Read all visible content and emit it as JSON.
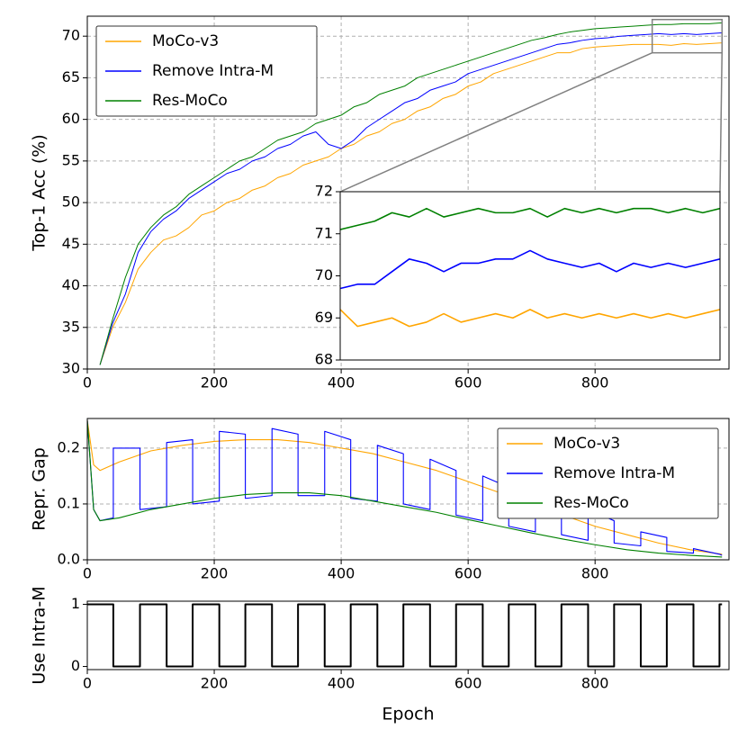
{
  "chart_data": [
    {
      "type": "line",
      "ylabel": "Top-1 Acc (%)",
      "xlim": [
        0,
        1011
      ],
      "ylim": [
        30,
        72.4
      ],
      "xticks": [
        0,
        200,
        400,
        600,
        800
      ],
      "yticks": [
        30,
        35,
        40,
        45,
        50,
        55,
        60,
        65,
        70
      ],
      "grid": true,
      "legend": "upper left",
      "series": [
        {
          "name": "MoCo-v3",
          "color": "#ffa500",
          "x": [
            20,
            40,
            60,
            80,
            100,
            120,
            140,
            160,
            180,
            200,
            220,
            240,
            260,
            280,
            300,
            320,
            340,
            360,
            380,
            400,
            420,
            440,
            460,
            480,
            500,
            520,
            540,
            560,
            580,
            600,
            620,
            640,
            660,
            680,
            700,
            720,
            740,
            760,
            780,
            800,
            820,
            840,
            860,
            880,
            900,
            920,
            940,
            960,
            980,
            1000
          ],
          "values": [
            30.5,
            35,
            38,
            42,
            44,
            45.5,
            46,
            47,
            48.5,
            49,
            50,
            50.5,
            51.5,
            52,
            53,
            53.5,
            54.5,
            55,
            55.5,
            56.5,
            57,
            58,
            58.5,
            59.5,
            60,
            61,
            61.5,
            62.5,
            63,
            64,
            64.5,
            65.5,
            66,
            66.5,
            67,
            67.5,
            68,
            68,
            68.5,
            68.7,
            68.8,
            68.9,
            69,
            69,
            69,
            68.9,
            69.1,
            69,
            69.1,
            69.2
          ]
        },
        {
          "name": "Remove Intra-M",
          "color": "#0000ff",
          "x": [
            20,
            40,
            60,
            80,
            100,
            120,
            140,
            160,
            180,
            200,
            220,
            240,
            260,
            280,
            300,
            320,
            340,
            360,
            380,
            400,
            420,
            440,
            460,
            480,
            500,
            520,
            540,
            560,
            580,
            600,
            620,
            640,
            660,
            680,
            700,
            720,
            740,
            760,
            780,
            800,
            820,
            840,
            860,
            880,
            900,
            920,
            940,
            960,
            980,
            1000
          ],
          "values": [
            30.5,
            35.5,
            39,
            44,
            46.5,
            48,
            49,
            50.5,
            51.5,
            52.5,
            53.5,
            54,
            55,
            55.5,
            56.5,
            57,
            58,
            58.5,
            57,
            56.5,
            57.5,
            59,
            60,
            61,
            62,
            62.5,
            63.5,
            64,
            64.5,
            65.5,
            66,
            66.5,
            67,
            67.5,
            68,
            68.5,
            69,
            69.2,
            69.5,
            69.7,
            69.8,
            70,
            70.1,
            70.2,
            70.3,
            70.2,
            70.3,
            70.2,
            70.3,
            70.4
          ]
        },
        {
          "name": "Res-MoCo",
          "color": "#008000",
          "x": [
            20,
            40,
            60,
            80,
            100,
            120,
            140,
            160,
            180,
            200,
            220,
            240,
            260,
            280,
            300,
            320,
            340,
            360,
            380,
            400,
            420,
            440,
            460,
            480,
            500,
            520,
            540,
            560,
            580,
            600,
            620,
            640,
            660,
            680,
            700,
            720,
            740,
            760,
            780,
            800,
            820,
            840,
            860,
            880,
            900,
            920,
            940,
            960,
            980,
            1000
          ],
          "values": [
            30.5,
            36,
            41,
            45,
            47,
            48.5,
            49.5,
            51,
            52,
            53,
            54,
            55,
            55.5,
            56.5,
            57.5,
            58,
            58.5,
            59.5,
            60,
            60.5,
            61.5,
            62,
            63,
            63.5,
            64,
            65,
            65.5,
            66,
            66.5,
            67,
            67.5,
            68,
            68.5,
            69,
            69.5,
            69.8,
            70.2,
            70.5,
            70.7,
            70.9,
            71,
            71.1,
            71.2,
            71.3,
            71.4,
            71.4,
            71.5,
            71.5,
            71.5,
            71.6
          ]
        }
      ]
    },
    {
      "type": "line",
      "xlim": [
        890,
        1000
      ],
      "ylim": [
        68,
        72
      ],
      "yticks": [
        68,
        69,
        70,
        71,
        72
      ],
      "series": [
        {
          "color": "#ffa500",
          "x": [
            890,
            895,
            900,
            905,
            910,
            915,
            920,
            925,
            930,
            935,
            940,
            945,
            950,
            955,
            960,
            965,
            970,
            975,
            980,
            985,
            990,
            995,
            1000
          ],
          "values": [
            69.2,
            68.8,
            68.9,
            69.0,
            68.8,
            68.9,
            69.1,
            68.9,
            69.0,
            69.1,
            69.0,
            69.2,
            69.0,
            69.1,
            69.0,
            69.1,
            69.0,
            69.1,
            69.0,
            69.1,
            69.0,
            69.1,
            69.2
          ]
        },
        {
          "color": "#0000ff",
          "x": [
            890,
            895,
            900,
            905,
            910,
            915,
            920,
            925,
            930,
            935,
            940,
            945,
            950,
            955,
            960,
            965,
            970,
            975,
            980,
            985,
            990,
            995,
            1000
          ],
          "values": [
            69.7,
            69.8,
            69.8,
            70.1,
            70.4,
            70.3,
            70.1,
            70.3,
            70.3,
            70.4,
            70.4,
            70.6,
            70.4,
            70.3,
            70.2,
            70.3,
            70.1,
            70.3,
            70.2,
            70.3,
            70.2,
            70.3,
            70.4
          ]
        },
        {
          "color": "#008000",
          "x": [
            890,
            895,
            900,
            905,
            910,
            915,
            920,
            925,
            930,
            935,
            940,
            945,
            950,
            955,
            960,
            965,
            970,
            975,
            980,
            985,
            990,
            995,
            1000
          ],
          "values": [
            71.1,
            71.2,
            71.3,
            71.5,
            71.4,
            71.6,
            71.4,
            71.5,
            71.6,
            71.5,
            71.5,
            71.6,
            71.4,
            71.6,
            71.5,
            71.6,
            71.5,
            71.6,
            71.6,
            71.5,
            71.6,
            71.5,
            71.6
          ]
        }
      ]
    },
    {
      "type": "line",
      "ylabel": "Repr. Gap",
      "xlim": [
        0,
        1011
      ],
      "ylim": [
        0,
        0.253
      ],
      "xticks": [
        0,
        200,
        400,
        600,
        800
      ],
      "yticks": [
        {
          "value": 0,
          "label": "0.0"
        },
        0.1,
        0.2
      ],
      "grid": true,
      "legend": "upper right",
      "series": [
        {
          "name": "MoCo-v3",
          "color": "#ffa500",
          "x": [
            0,
            10,
            20,
            50,
            100,
            150,
            200,
            250,
            300,
            350,
            400,
            450,
            500,
            550,
            600,
            650,
            700,
            750,
            800,
            850,
            900,
            950,
            1000
          ],
          "values": [
            0.25,
            0.17,
            0.16,
            0.175,
            0.195,
            0.205,
            0.212,
            0.215,
            0.215,
            0.21,
            0.2,
            0.19,
            0.175,
            0.16,
            0.14,
            0.12,
            0.1,
            0.08,
            0.06,
            0.045,
            0.03,
            0.018,
            0.01
          ]
        },
        {
          "name": "Remove Intra-M",
          "color": "#0000ff",
          "x": [
            0,
            10,
            20,
            41,
            41,
            83,
            83,
            125,
            125,
            166,
            166,
            208,
            208,
            249,
            249,
            291,
            291,
            332,
            332,
            374,
            374,
            415,
            415,
            457,
            457,
            498,
            498,
            540,
            540,
            581,
            581,
            623,
            623,
            664,
            664,
            706,
            706,
            747,
            747,
            789,
            789,
            830,
            830,
            872,
            872,
            913,
            913,
            955,
            955,
            996,
            1000
          ],
          "values": [
            0.25,
            0.09,
            0.07,
            0.075,
            0.2,
            0.2,
            0.09,
            0.095,
            0.21,
            0.215,
            0.1,
            0.105,
            0.23,
            0.225,
            0.11,
            0.115,
            0.235,
            0.225,
            0.115,
            0.115,
            0.23,
            0.215,
            0.11,
            0.105,
            0.205,
            0.19,
            0.1,
            0.09,
            0.18,
            0.16,
            0.08,
            0.07,
            0.15,
            0.13,
            0.06,
            0.05,
            0.12,
            0.1,
            0.045,
            0.035,
            0.09,
            0.07,
            0.03,
            0.025,
            0.05,
            0.04,
            0.015,
            0.012,
            0.02,
            0.01,
            0.008
          ]
        },
        {
          "name": "Res-MoCo",
          "color": "#008000",
          "x": [
            0,
            10,
            20,
            50,
            100,
            150,
            200,
            250,
            300,
            350,
            400,
            450,
            500,
            550,
            600,
            650,
            700,
            750,
            800,
            850,
            900,
            950,
            1000
          ],
          "values": [
            0.25,
            0.09,
            0.07,
            0.075,
            0.09,
            0.1,
            0.11,
            0.117,
            0.12,
            0.12,
            0.115,
            0.105,
            0.095,
            0.085,
            0.072,
            0.06,
            0.048,
            0.037,
            0.027,
            0.018,
            0.012,
            0.008,
            0.005
          ]
        }
      ]
    },
    {
      "type": "line",
      "ylabel": "Use Intra-M",
      "xlabel": "Epoch",
      "xlim": [
        0,
        1011
      ],
      "ylim": [
        -0.05,
        1.05
      ],
      "xticks": [
        0,
        200,
        400,
        600,
        800
      ],
      "yticks": [
        0,
        1
      ],
      "color": "#000000",
      "x": [
        0,
        41,
        41,
        83,
        83,
        125,
        125,
        166,
        166,
        208,
        208,
        249,
        249,
        291,
        291,
        332,
        332,
        374,
        374,
        415,
        415,
        457,
        457,
        498,
        498,
        540,
        540,
        581,
        581,
        623,
        623,
        664,
        664,
        706,
        706,
        747,
        747,
        789,
        789,
        830,
        830,
        872,
        872,
        913,
        913,
        955,
        955,
        996,
        996,
        1000
      ],
      "values": [
        1,
        1,
        0,
        0,
        1,
        1,
        0,
        0,
        1,
        1,
        0,
        0,
        1,
        1,
        0,
        0,
        1,
        1,
        0,
        0,
        1,
        1,
        0,
        0,
        1,
        1,
        0,
        0,
        1,
        1,
        0,
        0,
        1,
        1,
        0,
        0,
        1,
        1,
        0,
        0,
        1,
        1,
        0,
        0,
        1,
        1,
        0,
        0,
        1,
        1
      ]
    }
  ]
}
